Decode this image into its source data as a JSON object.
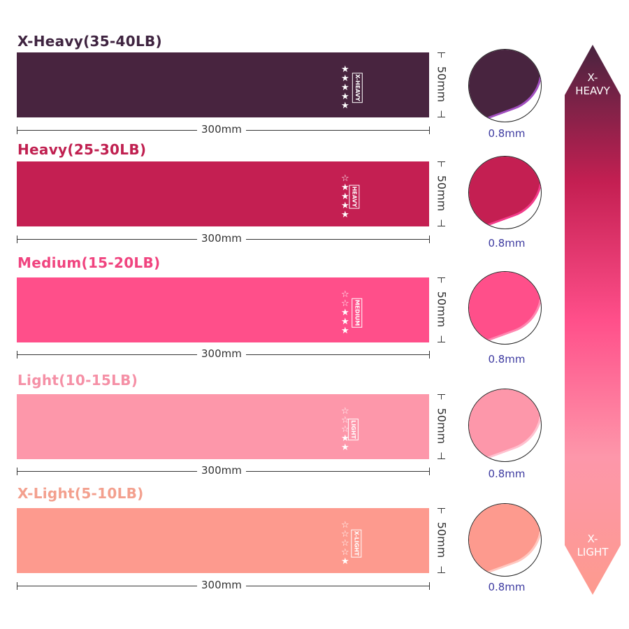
{
  "bands": [
    {
      "title": "X-Heavy(35-40LB)",
      "title_color": "#3f2440",
      "color": "#48243f",
      "edge": "#a24fc0",
      "stars_filled": 5,
      "stars_total": 5,
      "tag": "X-HEAVY",
      "length": "300mm",
      "width": "50mm",
      "thickness": "0.8mm"
    },
    {
      "title": "Heavy(25-30LB)",
      "title_color": "#c02050",
      "color": "#c41f52",
      "edge": "#f23b8a",
      "stars_filled": 4,
      "stars_total": 5,
      "tag": "HEAVY",
      "length": "300mm",
      "width": "50mm",
      "thickness": "0.8mm"
    },
    {
      "title": "Medium(15-20LB)",
      "title_color": "#f0447f",
      "color": "#ff4f8a",
      "edge": "#ff86b0",
      "stars_filled": 3,
      "stars_total": 5,
      "tag": "MEDIUM",
      "length": "300mm",
      "width": "50mm",
      "thickness": "0.8mm"
    },
    {
      "title": "Light(10-15LB)",
      "title_color": "#f590a6",
      "color": "#fd97aa",
      "edge": "#ffc1cf",
      "stars_filled": 2,
      "stars_total": 5,
      "tag": "LIGHT",
      "length": "300mm",
      "width": "50mm",
      "thickness": "0.8mm"
    },
    {
      "title": "X-Light(5-10LB)",
      "title_color": "#f3a08e",
      "color": "#fd9a8e",
      "edge": "#ffc8c0",
      "stars_filled": 1,
      "stars_total": 5,
      "tag": "X-LIGHT",
      "length": "300mm",
      "width": "50mm",
      "thickness": "0.8mm"
    }
  ],
  "scale": {
    "top_label": "X-\nHEAVY",
    "bottom_label": "X-\nLIGHT",
    "gradient": [
      "#48243f",
      "#c41f52",
      "#ff4f8a",
      "#fd97aa",
      "#fd9a8e"
    ]
  }
}
